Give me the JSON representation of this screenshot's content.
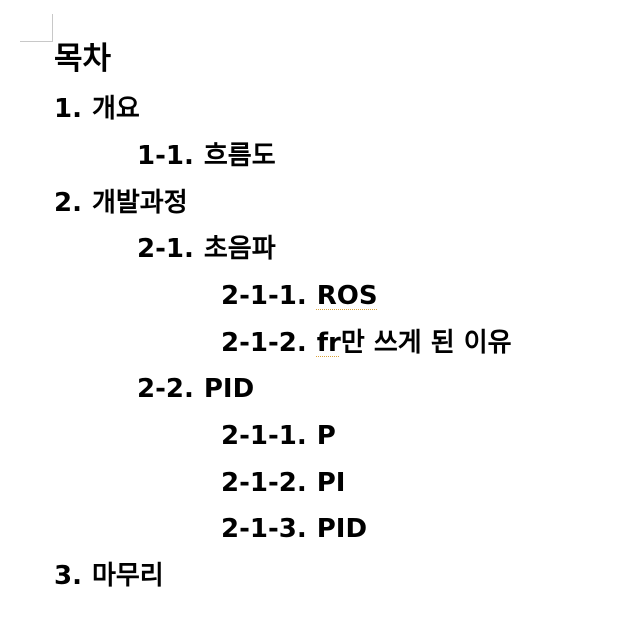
{
  "document": {
    "title": "목차",
    "entries": [
      {
        "number": "1.",
        "text": "개요"
      },
      {
        "number": "1-1.",
        "text": "흐름도"
      },
      {
        "number": "2.",
        "text": "개발과정"
      },
      {
        "number": "2-1.",
        "text": "초음파"
      },
      {
        "number": "2-1-1.",
        "text": "ROS"
      },
      {
        "number": "2-1-2.",
        "text_a": "fr",
        "text_b": "만 쓰게 된 이유"
      },
      {
        "number": "2-2.",
        "text": "PID"
      },
      {
        "number": "2-1-1.",
        "text": "P"
      },
      {
        "number": "2-1-2.",
        "text": "PI"
      },
      {
        "number": "2-1-3.",
        "text": "PID"
      },
      {
        "number": "3.",
        "text": "마무리"
      }
    ]
  },
  "colors": {
    "text": "#000000",
    "spellcheck_underline": "#d9a23a",
    "corner_mark": "#c8c8c8"
  }
}
